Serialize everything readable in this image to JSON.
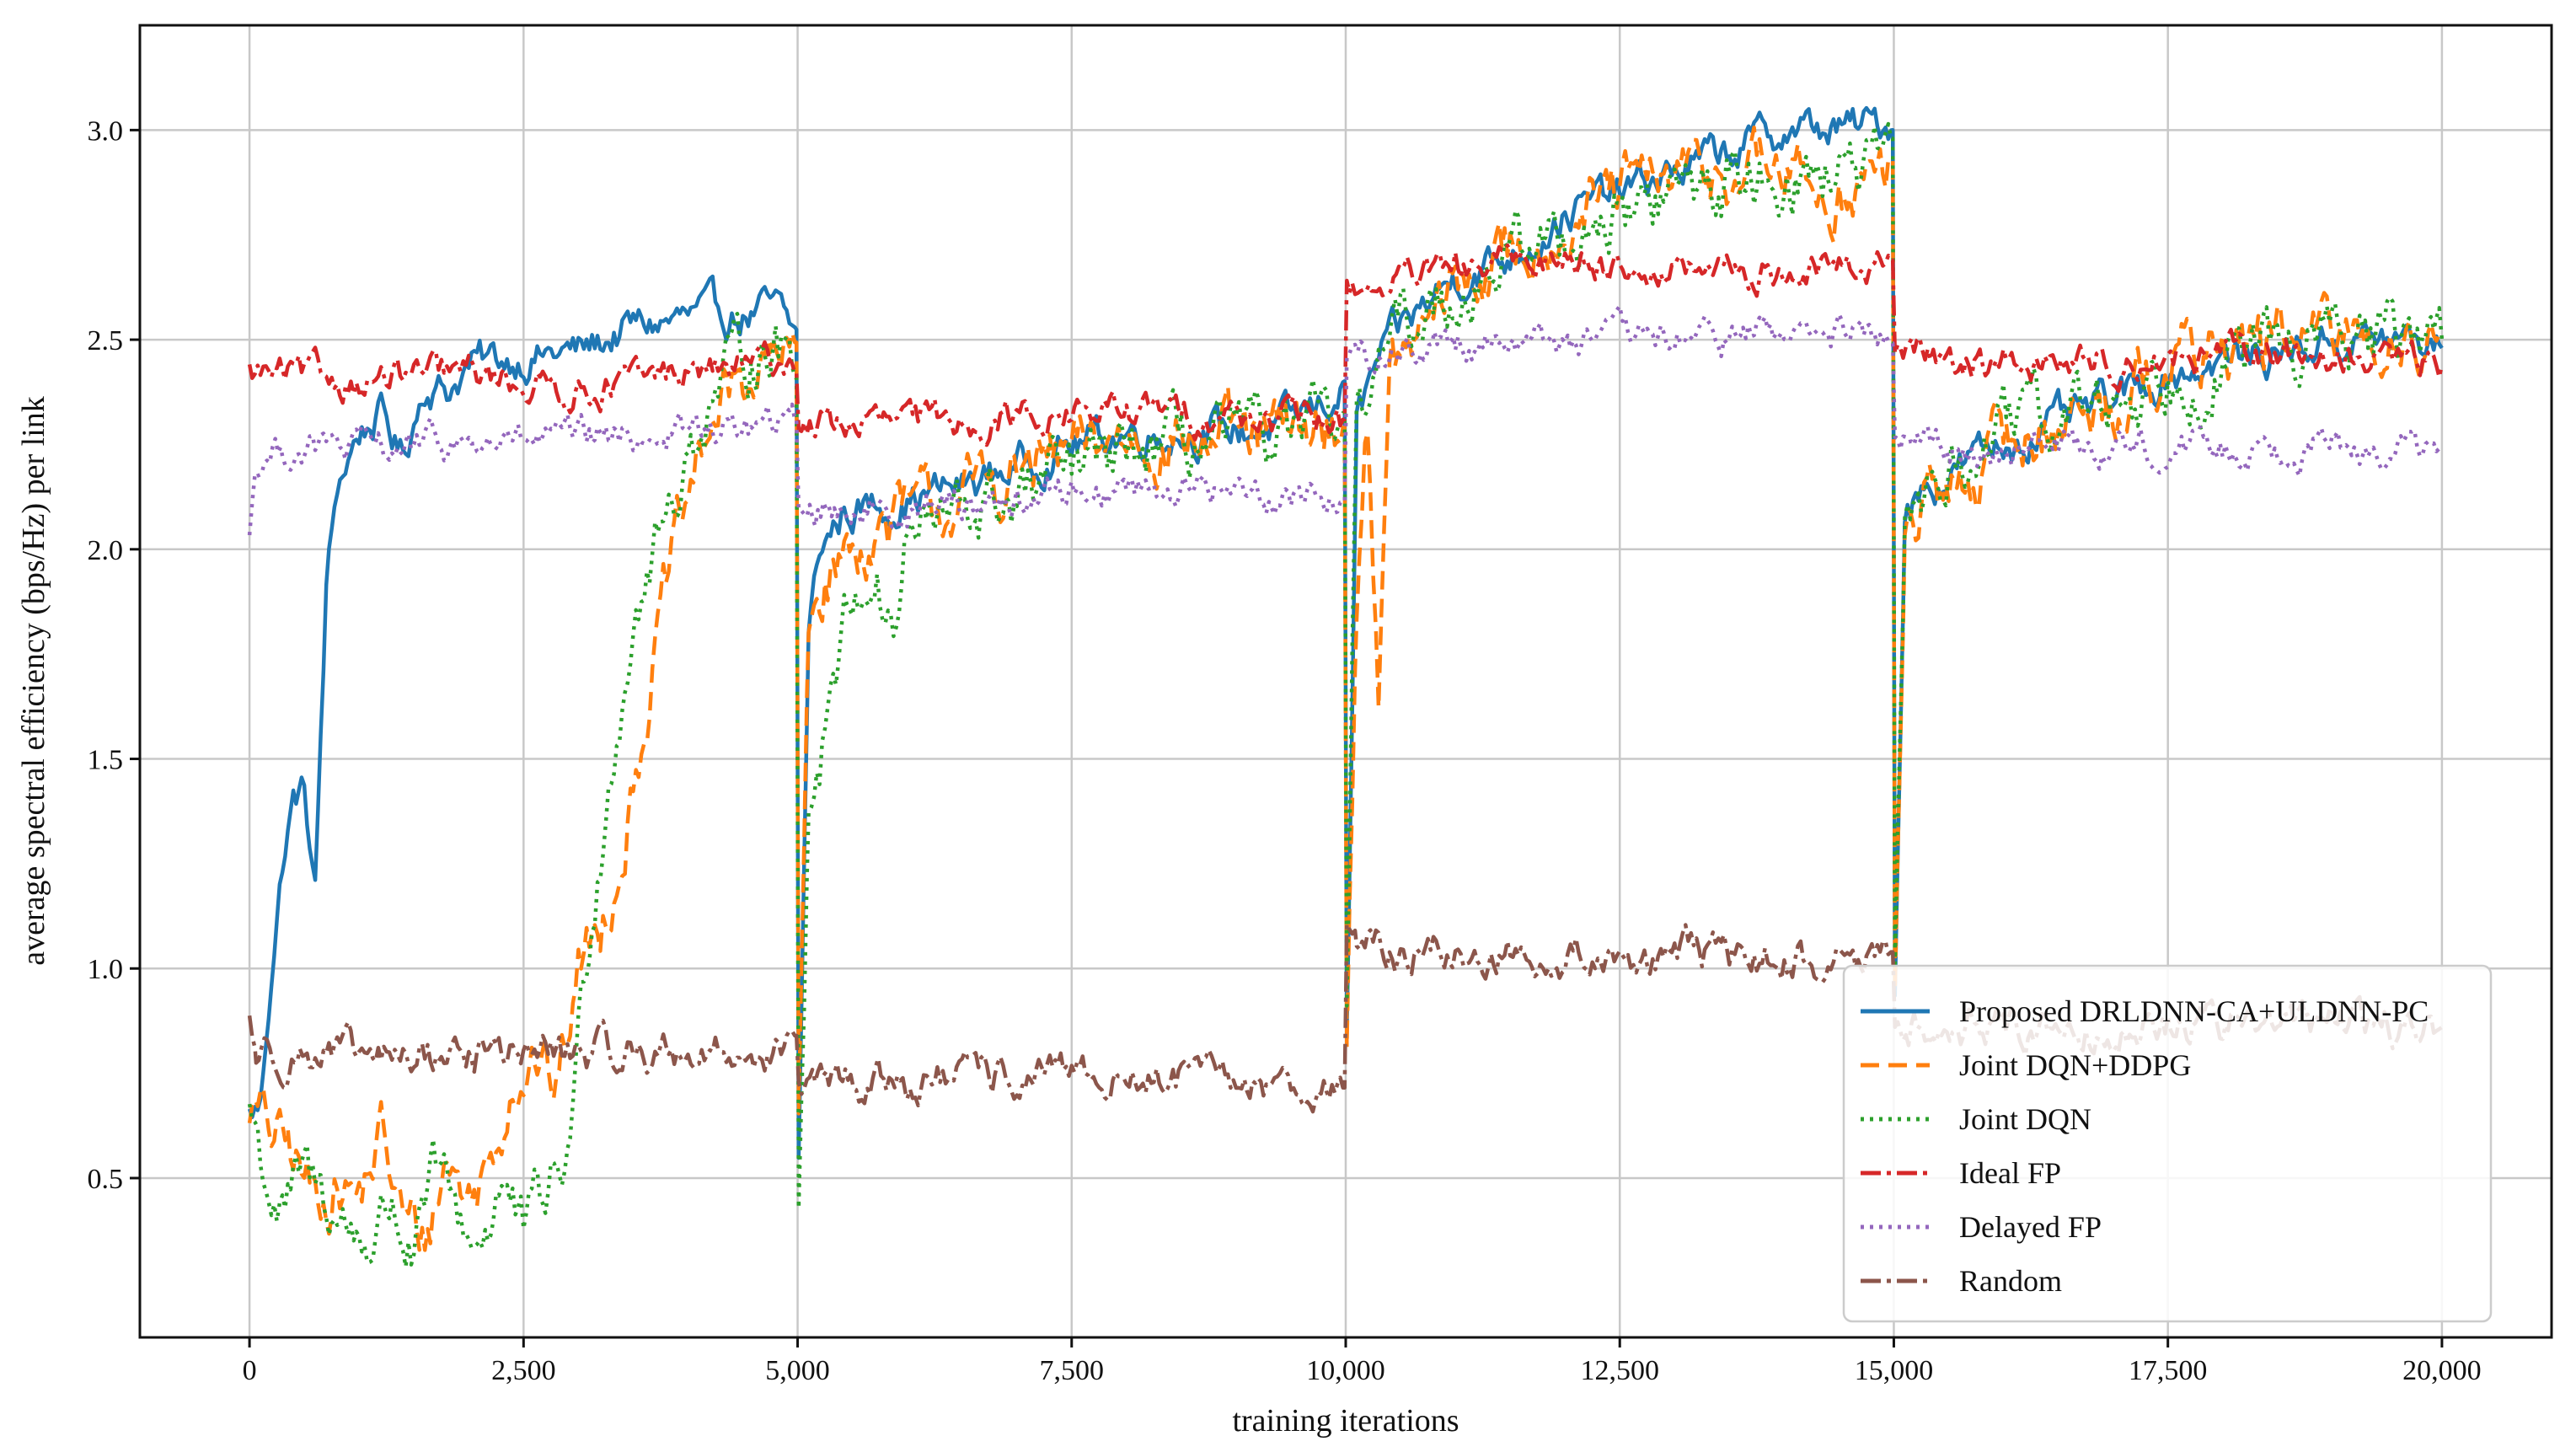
{
  "chart_data": {
    "type": "line",
    "title": "",
    "xlabel": "training iterations",
    "ylabel": "average spectral efficiency (bps/Hz) per link",
    "xlim": [
      -1000,
      21000
    ],
    "ylim": [
      0.12,
      3.25
    ],
    "grid": true,
    "legend_position": "bottom-right",
    "x_ticks": [
      {
        "value": 0,
        "label": "0"
      },
      {
        "value": 2500,
        "label": "2,500"
      },
      {
        "value": 5000,
        "label": "5,000"
      },
      {
        "value": 7500,
        "label": "7,500"
      },
      {
        "value": 10000,
        "label": "10,000"
      },
      {
        "value": 12500,
        "label": "12,500"
      },
      {
        "value": 15000,
        "label": "15,000"
      },
      {
        "value": 17500,
        "label": "17,500"
      },
      {
        "value": 20000,
        "label": "20,000"
      }
    ],
    "y_ticks": [
      {
        "value": 0.5,
        "label": "0.5"
      },
      {
        "value": 1.0,
        "label": "1.0"
      },
      {
        "value": 1.5,
        "label": "1.5"
      },
      {
        "value": 2.0,
        "label": "2.0"
      },
      {
        "value": 2.5,
        "label": "2.5"
      },
      {
        "value": 3.0,
        "label": "3.0"
      }
    ],
    "series": [
      {
        "name": "Proposed DRLDNN-CA+ULDNN-PC",
        "color": "#1f77b4",
        "dash": "solid",
        "noise": 0.035,
        "x": [
          0,
          100,
          200,
          300,
          400,
          500,
          600,
          700,
          800,
          900,
          1000,
          1200,
          1400,
          1600,
          1800,
          2000,
          2500,
          3000,
          3500,
          4000,
          4500,
          4800,
          4990,
          5010,
          5100,
          5200,
          5400,
          5600,
          6000,
          6500,
          7000,
          7500,
          8000,
          8500,
          9000,
          9500,
          9990,
          10010,
          10100,
          10300,
          10600,
          11000,
          11500,
          12000,
          12500,
          13000,
          13500,
          14000,
          14500,
          14990,
          15010,
          15100,
          15300,
          15600,
          16000,
          16500,
          17000,
          17500,
          18000,
          18500,
          19000,
          19500,
          20000
        ],
        "y": [
          0.65,
          0.67,
          1.0,
          1.25,
          1.4,
          1.42,
          1.18,
          1.9,
          2.15,
          2.22,
          2.28,
          2.32,
          2.22,
          2.4,
          2.38,
          2.44,
          2.46,
          2.47,
          2.53,
          2.55,
          2.56,
          2.57,
          2.5,
          0.55,
          1.8,
          2.0,
          2.08,
          2.1,
          2.12,
          2.15,
          2.2,
          2.25,
          2.28,
          2.28,
          2.28,
          2.3,
          2.38,
          0.83,
          2.3,
          2.45,
          2.55,
          2.65,
          2.7,
          2.8,
          2.85,
          2.9,
          2.95,
          3.0,
          3.0,
          3.02,
          0.95,
          2.1,
          2.15,
          2.2,
          2.25,
          2.3,
          2.35,
          2.42,
          2.45,
          2.47,
          2.5,
          2.5,
          2.48
        ]
      },
      {
        "name": "Joint DQN+DDPG",
        "color": "#ff7f0e",
        "dash": "22,11",
        "noise": 0.06,
        "x": [
          0,
          200,
          400,
          600,
          800,
          1000,
          1200,
          1400,
          1600,
          1800,
          2000,
          2200,
          2400,
          2600,
          2800,
          3000,
          3200,
          3400,
          3600,
          3800,
          4000,
          4200,
          4400,
          4600,
          4800,
          4990,
          5010,
          5100,
          5300,
          5600,
          6000,
          6500,
          7000,
          7500,
          8000,
          8500,
          9000,
          9500,
          9990,
          10010,
          10100,
          10200,
          10300,
          10400,
          10600,
          11000,
          11500,
          12000,
          12500,
          13000,
          13500,
          14000,
          14500,
          14990,
          15010,
          15100,
          15300,
          15600,
          16000,
          16500,
          17000,
          17500,
          18000,
          18500,
          19000,
          19500,
          20000
        ],
        "y": [
          0.68,
          0.6,
          0.55,
          0.45,
          0.5,
          0.45,
          0.6,
          0.4,
          0.35,
          0.55,
          0.45,
          0.55,
          0.75,
          0.8,
          0.7,
          1.0,
          1.1,
          1.3,
          1.6,
          1.9,
          2.1,
          2.3,
          2.38,
          2.42,
          2.45,
          2.45,
          0.6,
          1.85,
          1.95,
          2.02,
          2.08,
          2.12,
          2.18,
          2.22,
          2.27,
          2.27,
          2.25,
          2.27,
          2.3,
          0.85,
          1.9,
          2.3,
          1.7,
          2.4,
          2.48,
          2.62,
          2.7,
          2.78,
          2.85,
          2.88,
          2.9,
          2.9,
          2.85,
          2.9,
          0.9,
          2.05,
          2.1,
          2.15,
          2.25,
          2.3,
          2.35,
          2.45,
          2.48,
          2.5,
          2.5,
          2.52,
          2.52
        ]
      },
      {
        "name": "Joint DQN",
        "color": "#2ca02c",
        "dash": "4,7",
        "noise": 0.06,
        "x": [
          0,
          150,
          300,
          500,
          700,
          900,
          1100,
          1300,
          1500,
          1700,
          1900,
          2100,
          2300,
          2500,
          2700,
          2900,
          3100,
          3300,
          3500,
          3700,
          3900,
          4100,
          4300,
          4500,
          4700,
          4990,
          5010,
          5100,
          5200,
          5300,
          5500,
          5700,
          5900,
          6000,
          6200,
          6500,
          7000,
          7500,
          8000,
          8500,
          9000,
          9500,
          9990,
          10010,
          10100,
          10300,
          10600,
          11000,
          11500,
          12000,
          12500,
          13000,
          13500,
          14000,
          14500,
          14990,
          15010,
          15100,
          15300,
          15600,
          16000,
          16500,
          17000,
          17500,
          18000,
          18500,
          19000,
          19500,
          20000
        ],
        "y": [
          0.68,
          0.5,
          0.4,
          0.5,
          0.45,
          0.38,
          0.35,
          0.45,
          0.3,
          0.5,
          0.4,
          0.35,
          0.5,
          0.35,
          0.45,
          0.55,
          1.1,
          1.5,
          1.85,
          2.0,
          2.15,
          2.3,
          2.4,
          2.45,
          2.5,
          2.45,
          0.5,
          1.4,
          1.5,
          1.7,
          1.9,
          1.95,
          1.8,
          2.05,
          2.05,
          2.08,
          2.12,
          2.18,
          2.22,
          2.25,
          2.25,
          2.27,
          2.28,
          0.82,
          2.35,
          2.45,
          2.55,
          2.62,
          2.7,
          2.75,
          2.8,
          2.85,
          2.88,
          2.9,
          2.9,
          2.9,
          0.9,
          2.05,
          2.15,
          2.2,
          2.28,
          2.32,
          2.35,
          2.42,
          2.45,
          2.48,
          2.5,
          2.5,
          2.5
        ]
      },
      {
        "name": "Ideal FP",
        "color": "#d62728",
        "dash": "24,7,5,7",
        "noise": 0.03,
        "x": [
          0,
          1000,
          2000,
          3000,
          4000,
          4990,
          5010,
          6000,
          7000,
          8000,
          9000,
          9990,
          10010,
          11000,
          12000,
          13000,
          14000,
          14990,
          15010,
          16000,
          17000,
          18000,
          19000,
          20000
        ],
        "y": [
          2.42,
          2.4,
          2.42,
          2.38,
          2.42,
          2.45,
          2.3,
          2.3,
          2.32,
          2.33,
          2.32,
          2.3,
          2.62,
          2.66,
          2.7,
          2.66,
          2.66,
          2.68,
          2.48,
          2.44,
          2.45,
          2.46,
          2.46,
          2.44
        ]
      },
      {
        "name": "Delayed FP",
        "color": "#9467bd",
        "dash": "4,7",
        "noise": 0.03,
        "x": [
          0,
          60,
          300,
          1000,
          2000,
          3000,
          4000,
          4990,
          5010,
          6000,
          7000,
          8000,
          9000,
          9990,
          10010,
          11000,
          12000,
          13000,
          14000,
          14990,
          15010,
          16000,
          17000,
          18000,
          19000,
          20000
        ],
        "y": [
          2.05,
          2.2,
          2.24,
          2.24,
          2.25,
          2.26,
          2.28,
          2.3,
          2.1,
          2.1,
          2.12,
          2.15,
          2.14,
          2.12,
          2.45,
          2.5,
          2.5,
          2.5,
          2.52,
          2.5,
          2.25,
          2.24,
          2.25,
          2.24,
          2.25,
          2.23
        ]
      },
      {
        "name": "Random",
        "color": "#8c564b",
        "dash": "24,7,5,7",
        "noise": 0.035,
        "x": [
          0,
          60,
          500,
          1000,
          2000,
          3000,
          4000,
          4990,
          5010,
          6000,
          7000,
          8000,
          9000,
          9990,
          10010,
          10100,
          11000,
          12000,
          13000,
          14000,
          14990,
          15010,
          16000,
          17000,
          18000,
          19000,
          20000
        ],
        "y": [
          0.88,
          0.8,
          0.8,
          0.78,
          0.8,
          0.8,
          0.8,
          0.8,
          0.72,
          0.73,
          0.74,
          0.74,
          0.73,
          0.72,
          1.12,
          1.05,
          1.03,
          1.03,
          1.03,
          1.02,
          1.02,
          0.88,
          0.86,
          0.86,
          0.87,
          0.87,
          0.86
        ]
      }
    ]
  }
}
